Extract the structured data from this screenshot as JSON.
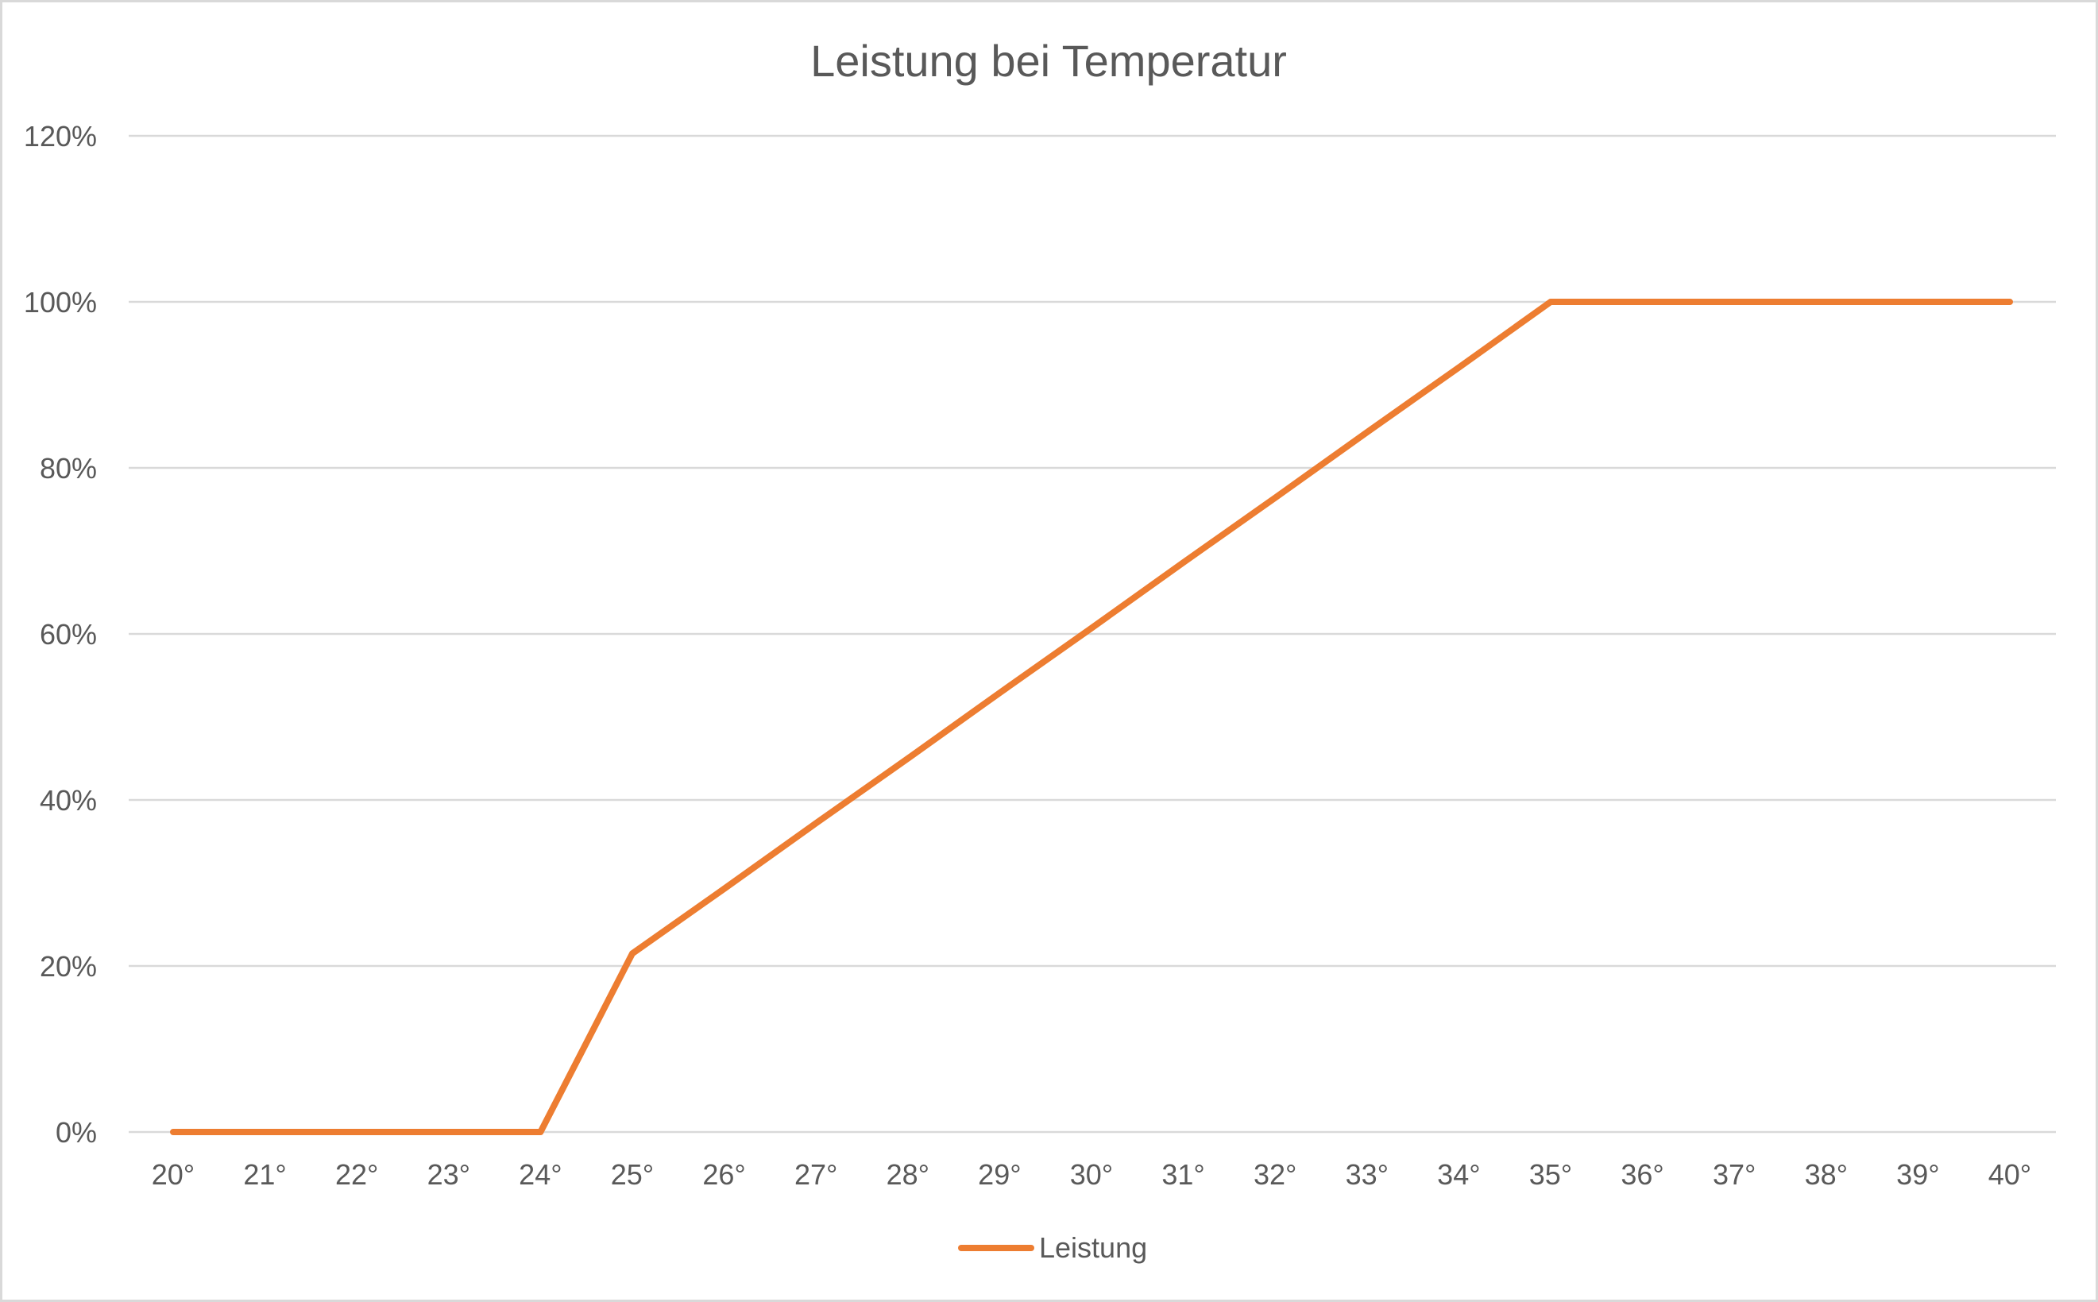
{
  "chart_data": {
    "type": "line",
    "title": "Leistung bei Temperatur",
    "xlabel": "",
    "ylabel": "",
    "categories": [
      "20°",
      "21°",
      "22°",
      "23°",
      "24°",
      "25°",
      "26°",
      "27°",
      "28°",
      "29°",
      "30°",
      "31°",
      "32°",
      "33°",
      "34°",
      "35°",
      "36°",
      "37°",
      "38°",
      "39°",
      "40°"
    ],
    "series": [
      {
        "name": "Leistung",
        "color": "#ed7d31",
        "values": [
          0,
          0,
          0,
          0,
          0,
          0.215,
          0.293,
          0.372,
          0.45,
          0.529,
          0.607,
          0.686,
          0.764,
          0.843,
          0.921,
          1.0,
          1.0,
          1.0,
          1.0,
          1.0,
          1.0
        ]
      }
    ],
    "ylim": [
      0,
      1.2
    ],
    "yticks": [
      0,
      0.2,
      0.4,
      0.6,
      0.8,
      1.0,
      1.2
    ],
    "ytick_labels": [
      "0%",
      "20%",
      "40%",
      "60%",
      "80%",
      "100%",
      "120%"
    ],
    "grid": true,
    "legend_position": "bottom"
  },
  "colors": {
    "gridline": "#d9d9d9",
    "text": "#595959",
    "border": "#d9d9d9"
  }
}
